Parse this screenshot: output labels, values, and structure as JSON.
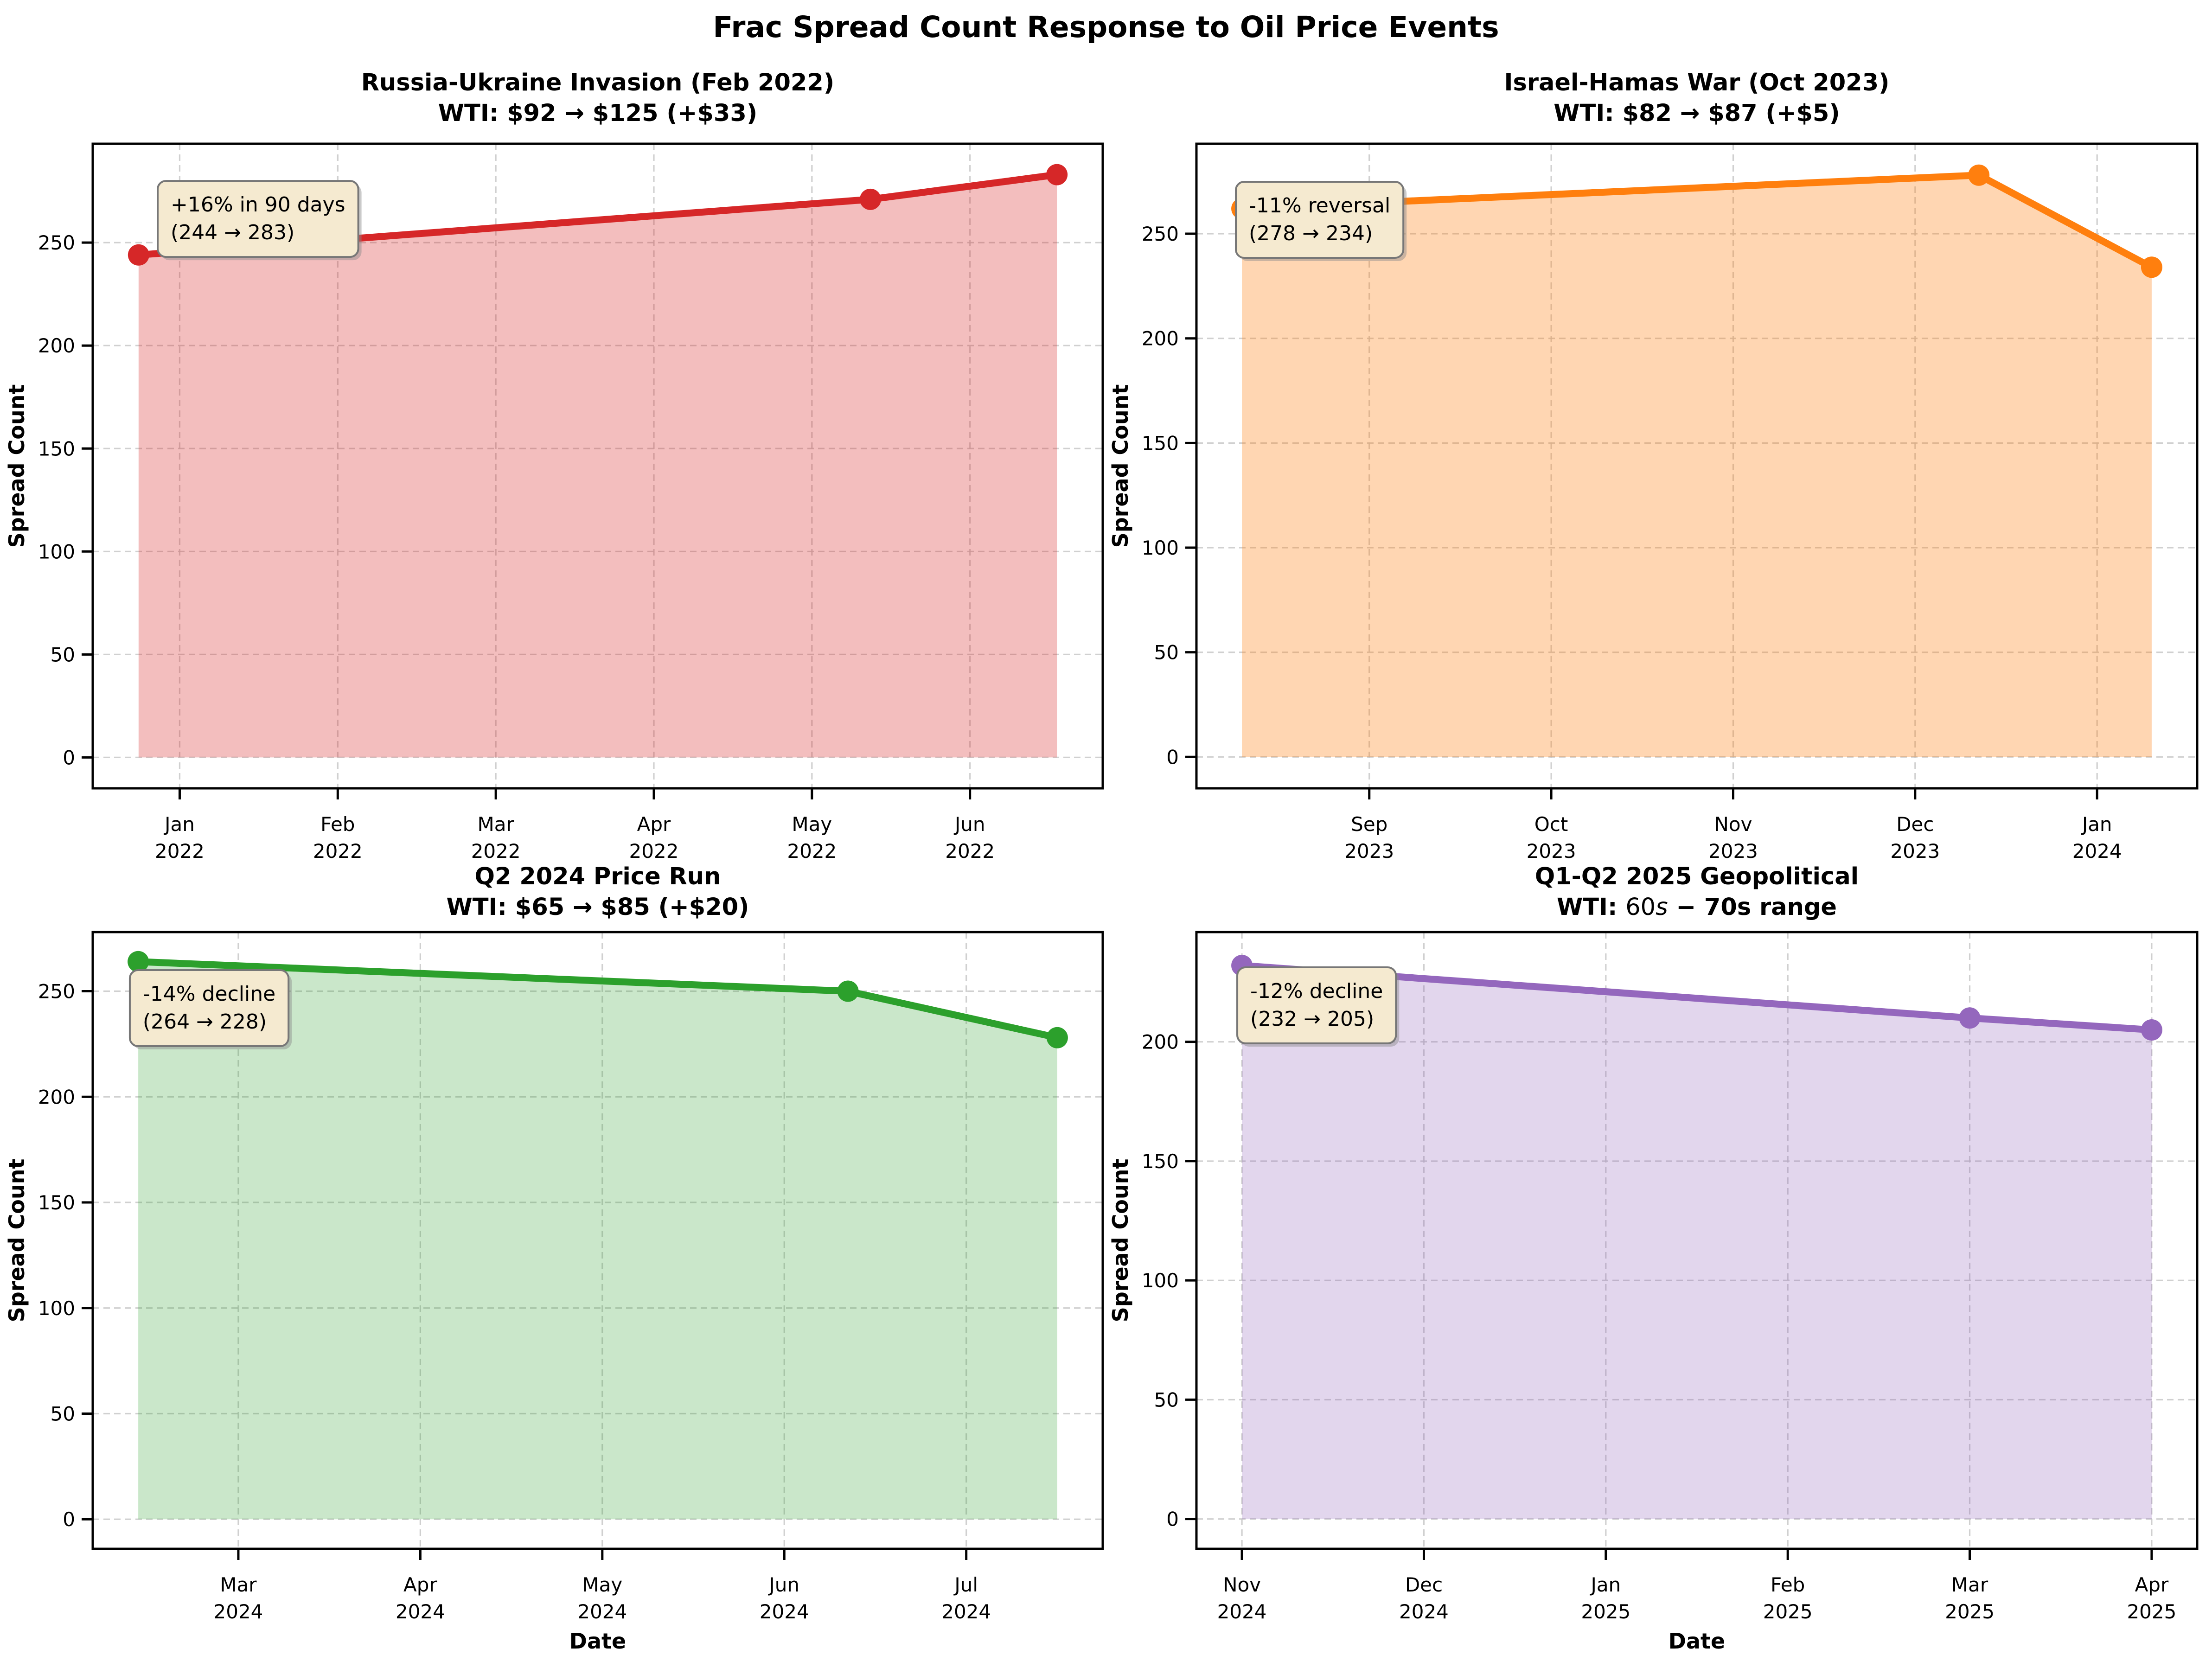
{
  "figure": {
    "title": "Frac Spread Count Response to Oil Price Events",
    "background": "#ffffff",
    "grid_color": "#c8c8c8",
    "annotation_box_fill": "#f5ead0",
    "annotation_box_border": "#777777"
  },
  "chart_data": [
    {
      "id": "russia-ukraine",
      "type": "area",
      "title_line1": "Russia-Ukraine Invasion (Feb 2022)",
      "title_line2": "WTI: $92 → $125 (+$33)",
      "color": "#d62728",
      "fill_opacity": 0.3,
      "ylabel": "Spread Count",
      "xlabel": "",
      "x_ticks": [
        {
          "pos": 0,
          "month": "Jan",
          "year": "2022"
        },
        {
          "pos": 1,
          "month": "Feb",
          "year": "2022"
        },
        {
          "pos": 2,
          "month": "Mar",
          "year": "2022"
        },
        {
          "pos": 3,
          "month": "Apr",
          "year": "2022"
        },
        {
          "pos": 4,
          "month": "May",
          "year": "2022"
        },
        {
          "pos": 5,
          "month": "Jun",
          "year": "2022"
        }
      ],
      "y_ticks": [
        0,
        50,
        100,
        150,
        200,
        250
      ],
      "xlim": [
        -0.55,
        5.84
      ],
      "ylim": [
        -15,
        298
      ],
      "points": [
        {
          "x": -0.26,
          "y": 244
        },
        {
          "x": 4.37,
          "y": 271
        },
        {
          "x": 5.55,
          "y": 283
        }
      ],
      "baseline": 0,
      "grid": true,
      "annotation": {
        "line1": "+16% in 90 days",
        "line2": "(244 → 283)",
        "ax": 0.0643,
        "ay": 0.0576
      }
    },
    {
      "id": "israel-hamas",
      "type": "area",
      "title_line1": "Israel-Hamas War (Oct 2023)",
      "title_line2": "WTI: $82 → $87 (+$5)",
      "color": "#ff7f0e",
      "fill_opacity": 0.32,
      "ylabel": "Spread Count",
      "xlabel": "",
      "x_ticks": [
        {
          "pos": 0,
          "month": "Sep",
          "year": "2023"
        },
        {
          "pos": 1,
          "month": "Oct",
          "year": "2023"
        },
        {
          "pos": 2,
          "month": "Nov",
          "year": "2023"
        },
        {
          "pos": 3,
          "month": "Dec",
          "year": "2023"
        },
        {
          "pos": 4,
          "month": "Jan",
          "year": "2024"
        }
      ],
      "y_ticks": [
        0,
        50,
        100,
        150,
        200,
        250
      ],
      "xlim": [
        -0.95,
        4.55
      ],
      "ylim": [
        -15,
        293
      ],
      "points": [
        {
          "x": -0.7,
          "y": 262
        },
        {
          "x": 3.35,
          "y": 278
        },
        {
          "x": 4.3,
          "y": 234
        }
      ],
      "baseline": 0,
      "grid": true,
      "annotation": {
        "line1": "-11% reversal",
        "line2": "(278 → 234)",
        "ax": 0.0394,
        "ay": 0.059
      }
    },
    {
      "id": "q2-2024-price-run",
      "type": "area",
      "title_line1": "Q2 2024 Price Run",
      "title_line2": "WTI: $65 → $85 (+$20)",
      "color": "#2ca02c",
      "fill_opacity": 0.25,
      "ylabel": "Spread Count",
      "xlabel": "Date",
      "x_ticks": [
        {
          "pos": 0,
          "month": "Mar",
          "year": "2024"
        },
        {
          "pos": 1,
          "month": "Apr",
          "year": "2024"
        },
        {
          "pos": 2,
          "month": "May",
          "year": "2024"
        },
        {
          "pos": 3,
          "month": "Jun",
          "year": "2024"
        },
        {
          "pos": 4,
          "month": "Jul",
          "year": "2024"
        }
      ],
      "y_ticks": [
        0,
        50,
        100,
        150,
        200,
        250
      ],
      "xlim": [
        -0.8,
        4.75
      ],
      "ylim": [
        -14,
        278
      ],
      "points": [
        {
          "x": -0.55,
          "y": 264
        },
        {
          "x": 3.35,
          "y": 250
        },
        {
          "x": 4.5,
          "y": 228
        }
      ],
      "baseline": 0,
      "grid": true,
      "annotation": {
        "line1": "-14% decline",
        "line2": "(264 → 228)",
        "ax": 0.0367,
        "ay": 0.0617
      }
    },
    {
      "id": "q1-q2-2025-geopolitical",
      "type": "area",
      "title_line1": "Q1-Q2 2025 Geopolitical",
      "title_line2": "WTI: 60s – 70s range",
      "title_line2_segments": [
        {
          "t": "WTI: ",
          "s": "b"
        },
        {
          "t": "60",
          "s": "r"
        },
        {
          "t": "s",
          "s": "i"
        },
        {
          "t": " − ",
          "s": "b"
        },
        {
          "t": "70s range",
          "s": "b"
        }
      ],
      "color": "#9467bd",
      "fill_opacity": 0.27,
      "ylabel": "Spread Count",
      "xlabel": "Date",
      "x_ticks": [
        {
          "pos": 0,
          "month": "Nov",
          "year": "2024"
        },
        {
          "pos": 1,
          "month": "Dec",
          "year": "2024"
        },
        {
          "pos": 2,
          "month": "Jan",
          "year": "2025"
        },
        {
          "pos": 3,
          "month": "Feb",
          "year": "2025"
        },
        {
          "pos": 4,
          "month": "Mar",
          "year": "2025"
        },
        {
          "pos": 5,
          "month": "Apr",
          "year": "2025"
        }
      ],
      "y_ticks": [
        0,
        50,
        100,
        150,
        200
      ],
      "xlim": [
        -0.25,
        5.25
      ],
      "ylim": [
        -12.5,
        246
      ],
      "points": [
        {
          "x": 0,
          "y": 232
        },
        {
          "x": 4,
          "y": 210
        },
        {
          "x": 5,
          "y": 205
        }
      ],
      "baseline": 0,
      "grid": true,
      "annotation": {
        "line1": "-12% decline",
        "line2": "(232 → 205)",
        "ax": 0.0408,
        "ay": 0.0571
      }
    }
  ]
}
